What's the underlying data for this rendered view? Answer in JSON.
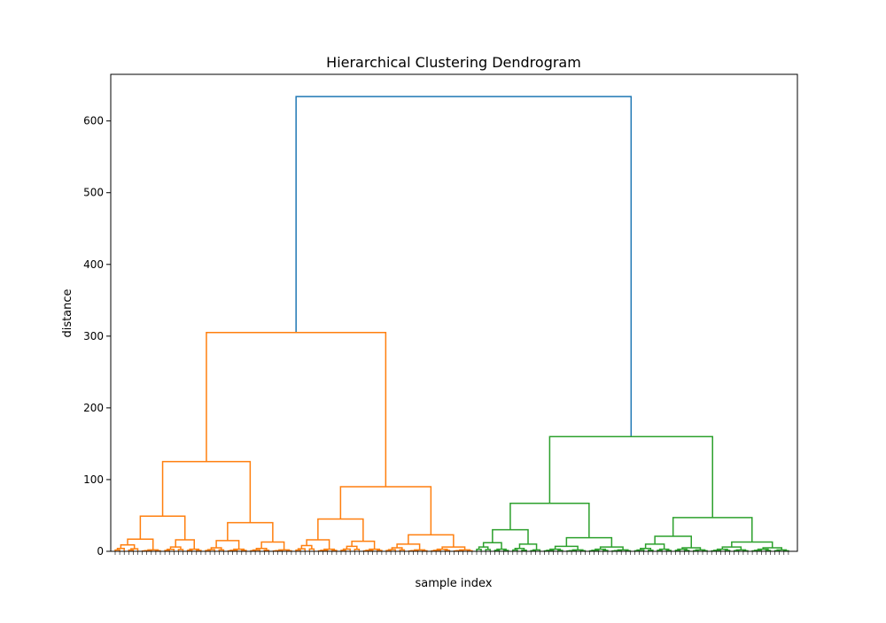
{
  "chart_data": {
    "type": "dendrogram",
    "title": "Hierarchical Clustering Dendrogram",
    "xlabel": "sample index",
    "ylabel": "distance",
    "ylim": [
      0,
      665
    ],
    "yticks": [
      0,
      100,
      200,
      300,
      400,
      500,
      600
    ],
    "grid": false,
    "colors": {
      "root": "#1f77b4",
      "cluster1": "#ff7f0e",
      "cluster2": "#2ca02c"
    },
    "leaf_count": 150,
    "links": [
      {
        "name": "root",
        "height": 634,
        "color": "root"
      },
      {
        "name": "cluster1",
        "height": 305,
        "color": "cluster1"
      },
      {
        "name": "cluster1-left",
        "height": 125,
        "color": "cluster1"
      },
      {
        "name": "cluster1-right",
        "height": 90,
        "color": "cluster1"
      },
      {
        "name": "cluster2",
        "height": 160,
        "color": "cluster2"
      },
      {
        "name": "cluster2-left",
        "height": 67,
        "color": "cluster2"
      },
      {
        "name": "cluster2-right",
        "height": 47,
        "color": "cluster2"
      }
    ]
  }
}
